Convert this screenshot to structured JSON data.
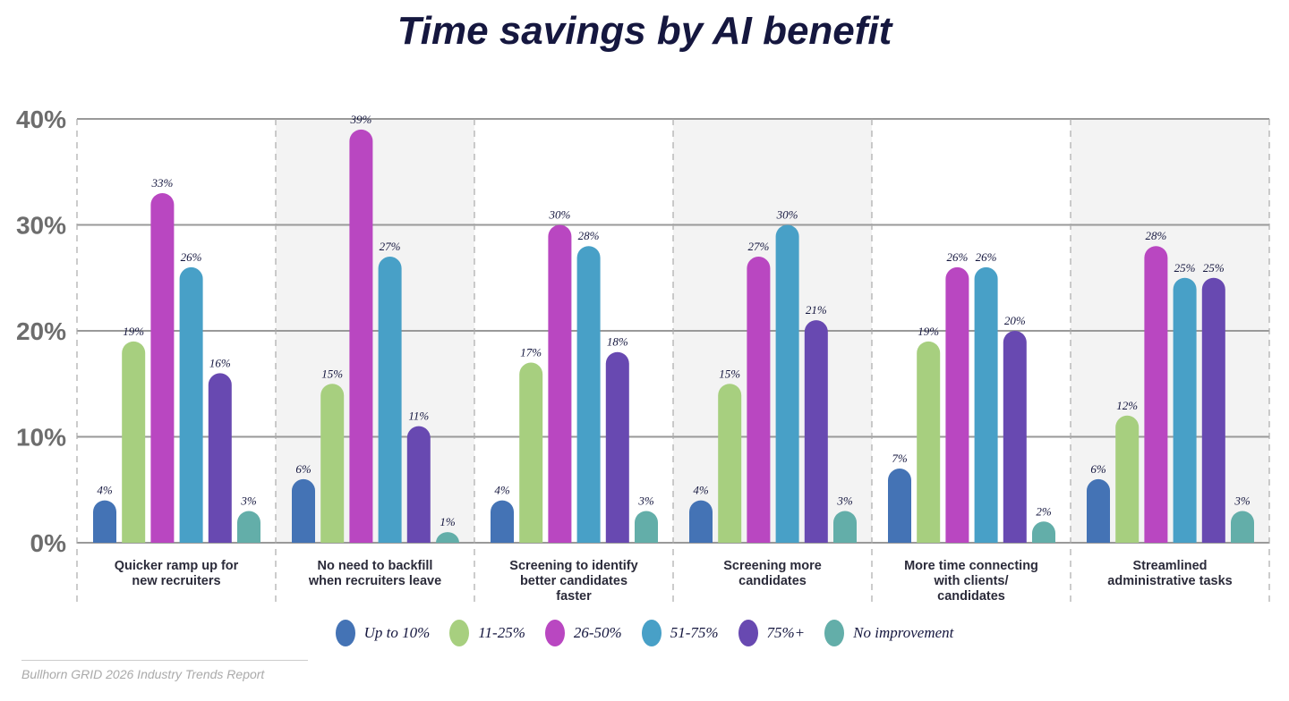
{
  "chart_data": {
    "type": "bar",
    "title": "Time savings by AI benefit",
    "categories": [
      "Quicker ramp up for new recruiters",
      "No need to backfill when recruiters leave",
      "Screening to identify better candidates faster",
      "Screening more candidates",
      "More time connecting with clients/ candidates",
      "Streamlined administrative tasks"
    ],
    "category_lines": [
      [
        "Quicker ramp up for",
        "new recruiters"
      ],
      [
        "No need to backfill",
        "when recruiters leave"
      ],
      [
        "Screening to identify",
        "better candidates",
        "faster"
      ],
      [
        "Screening more",
        "candidates"
      ],
      [
        "More time connecting",
        "with clients/",
        "candidates"
      ],
      [
        "Streamlined",
        "administrative tasks"
      ]
    ],
    "series": [
      {
        "name": "Up to 10%",
        "color": "#4473b5",
        "values": [
          4,
          6,
          4,
          4,
          7,
          6
        ]
      },
      {
        "name": "11-25%",
        "color": "#a7cf7f",
        "values": [
          19,
          15,
          17,
          15,
          19,
          12
        ]
      },
      {
        "name": "26-50%",
        "color": "#b947c1",
        "values": [
          33,
          39,
          30,
          27,
          26,
          28
        ]
      },
      {
        "name": "51-75%",
        "color": "#48a0c7",
        "values": [
          26,
          27,
          28,
          30,
          26,
          25
        ]
      },
      {
        "name": "75%+",
        "color": "#6849b1",
        "values": [
          16,
          11,
          18,
          21,
          20,
          25
        ]
      },
      {
        "name": "No improvement",
        "color": "#63aea9",
        "values": [
          3,
          1,
          3,
          3,
          2,
          3
        ]
      }
    ],
    "ylim": [
      0,
      40
    ],
    "yticks": [
      0,
      10,
      20,
      30,
      40
    ],
    "ytick_labels": [
      "0%",
      "10%",
      "20%",
      "30%",
      "40%"
    ],
    "grid": true,
    "legend": "bottom",
    "value_suffix": "%"
  },
  "source": "Bullhorn GRID 2026 Industry Trends Report"
}
